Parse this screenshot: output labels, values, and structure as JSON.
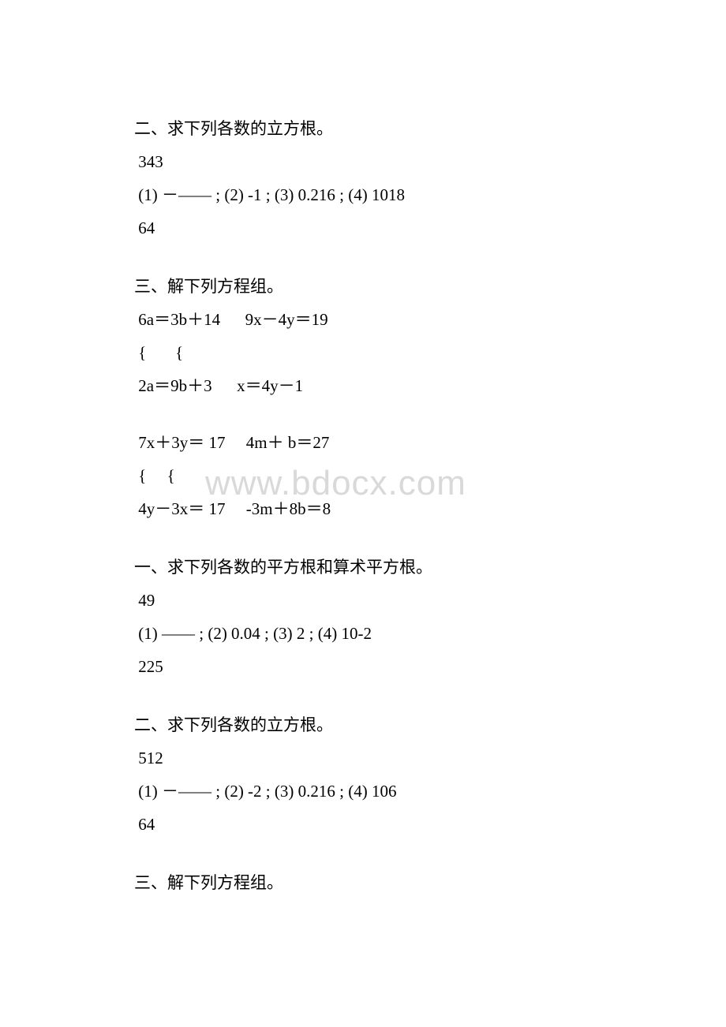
{
  "watermark": "www.bdocx.com",
  "sections": {
    "s1": {
      "title": "二、求下列各数的立方根。",
      "l1": " 343",
      "l2": " (1) －—— ; (2) -1 ; (3) 0.216 ; (4) 1018",
      "l3": " 64"
    },
    "s2": {
      "title": "三、解下列方程组。",
      "l1": " 6a＝3b＋14      9x－4y＝19",
      "l2": " {       {",
      "l3": " 2a＝9b＋3      x＝4y－1"
    },
    "s3": {
      "l1": " 7x＋3y＝ 17     4m＋ b＝27",
      "l2": " {     {",
      "l3": " 4y－3x＝ 17     -3m＋8b＝8"
    },
    "s4": {
      "title": "一、求下列各数的平方根和算术平方根。",
      "l1": " 49",
      "l2": " (1) —— ; (2) 0.04 ; (3) 2 ; (4) 10-2",
      "l3": " 225"
    },
    "s5": {
      "title": "二、求下列各数的立方根。",
      "l1": " 512",
      "l2": " (1) －—— ; (2) -2 ; (3) 0.216 ; (4) 106",
      "l3": " 64"
    },
    "s6": {
      "title": "三、解下列方程组。"
    }
  },
  "colors": {
    "text": "#000000",
    "background": "#ffffff",
    "watermark": "#d9d9d9"
  },
  "typography": {
    "body_fontsize": 21,
    "watermark_fontsize": 44,
    "font_family": "SimSun"
  }
}
